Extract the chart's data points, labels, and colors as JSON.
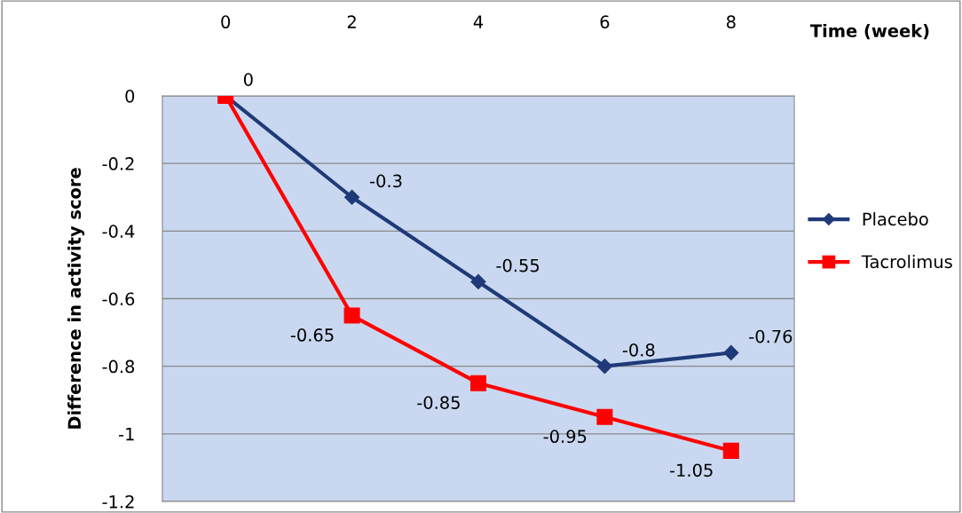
{
  "chart_data": {
    "type": "line",
    "xlabel": "Time (week)",
    "ylabel": "Difference in activity score",
    "categories": [
      "0",
      "2",
      "4",
      "6",
      "8"
    ],
    "series": [
      {
        "name": "Placebo",
        "color": "#1f3a78",
        "marker": "diamond",
        "values": [
          0,
          -0.3,
          -0.55,
          -0.8,
          -0.76
        ],
        "value_labels": [
          "0",
          "-0.3",
          "-0.55",
          "-0.8",
          "-0.76"
        ]
      },
      {
        "name": "Tacrolimus",
        "color": "#ff0000",
        "marker": "square",
        "values": [
          0,
          -0.65,
          -0.85,
          -0.95,
          -1.05
        ],
        "value_labels": [
          null,
          "-0.65",
          "-0.85",
          "-0.95",
          "-1.05"
        ]
      }
    ],
    "ylim": [
      -1.2,
      0
    ],
    "yticks": [
      0,
      -0.2,
      -0.4,
      -0.6,
      -0.8,
      -1,
      -1.2
    ],
    "grid": "y",
    "legend": "right",
    "line_style": "solid"
  }
}
